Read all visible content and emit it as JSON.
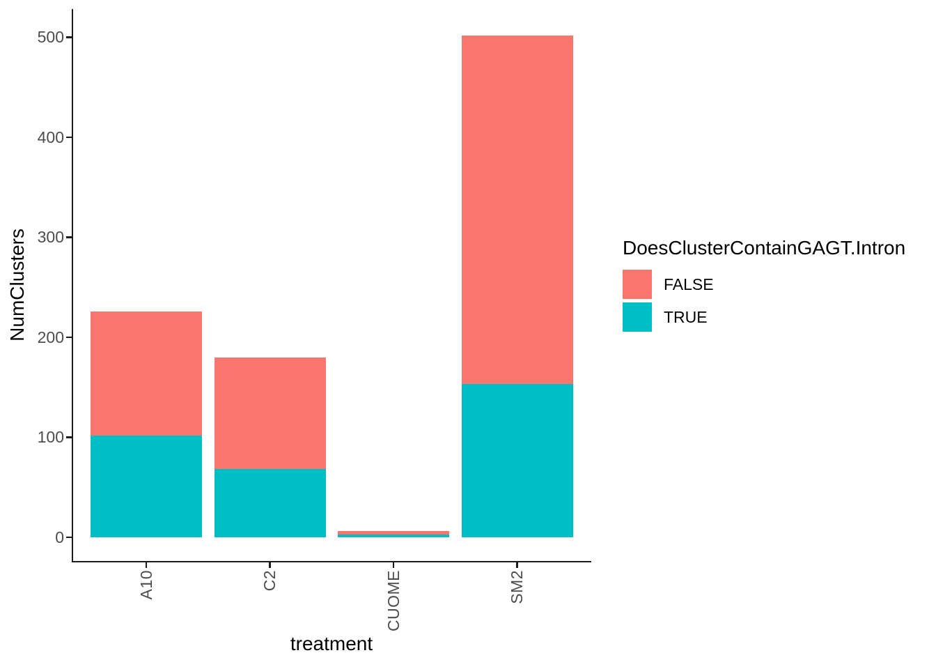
{
  "chart_data": {
    "type": "bar",
    "stacked": true,
    "title": "",
    "xlabel": "treatment",
    "ylabel": "NumClusters",
    "categories": [
      "A10",
      "C2",
      "CUOME",
      "SM2"
    ],
    "series": [
      {
        "name": "FALSE",
        "color": "#F8766D",
        "values": [
          124,
          112,
          3,
          349
        ]
      },
      {
        "name": "TRUE",
        "color": "#00BFC4",
        "values": [
          102,
          68,
          3,
          153
        ]
      }
    ],
    "stacked_totals": [
      226,
      180,
      6,
      502
    ],
    "y_ticks": [
      0,
      100,
      200,
      300,
      400,
      500
    ],
    "ylim": [
      0,
      527
    ],
    "grid": false,
    "x_tick_rotation": 90,
    "legend": {
      "position": "right",
      "title": "DoesClusterContainGAGT.Intron",
      "entries": [
        {
          "label": "FALSE",
          "color": "#F8766D"
        },
        {
          "label": "TRUE",
          "color": "#00BFC4"
        }
      ]
    }
  },
  "style": {
    "background": "#FFFFFF",
    "axis_line_color": "#1B1B1B",
    "axis_text_color": "#4D4D4D",
    "axis_title_color": "#000000",
    "false_color": "#F8766D",
    "true_color": "#00BFC4"
  }
}
